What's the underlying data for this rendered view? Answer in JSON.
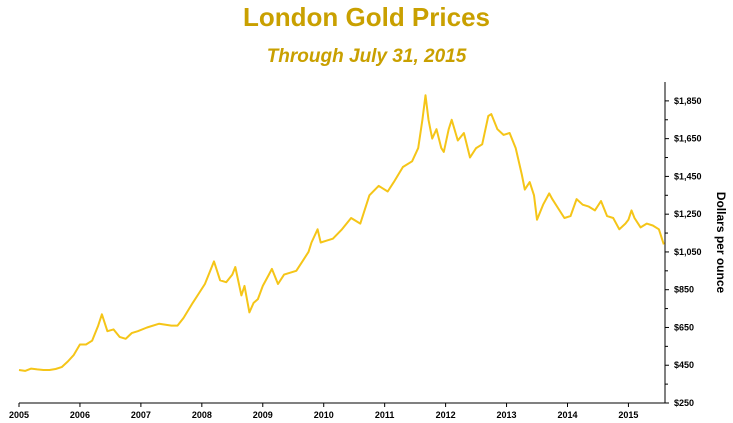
{
  "chart_data": {
    "type": "line",
    "title": "London Gold Prices",
    "subtitle": "Through July 31, 2015",
    "xlabel": "",
    "ylabel": "Dollars per ounce",
    "xlim": [
      2005.0,
      2015.6
    ],
    "ylim": [
      250,
      1950
    ],
    "x_ticks": [
      "2005",
      "2006",
      "2007",
      "2008",
      "2009",
      "2010",
      "2011",
      "2012",
      "2013",
      "2014",
      "2015"
    ],
    "y_ticks": [
      "$250",
      "$450",
      "$650",
      "$850",
      "$1,050",
      "$1,250",
      "$1,450",
      "$1,650",
      "$1,850"
    ],
    "y_axis_position": "right",
    "grid": false,
    "legend": "none",
    "colors": {
      "line": "#F5C518",
      "title": "#C9A000",
      "axis": "#000000"
    },
    "series": [
      {
        "x": [
          2005.0,
          2005.1,
          2005.2,
          2005.3,
          2005.4,
          2005.5,
          2005.6,
          2005.7,
          2005.8,
          2005.9,
          2006.0,
          2006.1,
          2006.2,
          2006.3,
          2006.36,
          2006.45,
          2006.55,
          2006.65,
          2006.75,
          2006.85,
          2006.95,
          2007.1,
          2007.3,
          2007.5,
          2007.6,
          2007.7,
          2007.85,
          2007.95,
          2008.05,
          2008.15,
          2008.2,
          2008.3,
          2008.4,
          2008.5,
          2008.55,
          2008.65,
          2008.7,
          2008.78,
          2008.85,
          2008.92,
          2009.0,
          2009.1,
          2009.15,
          2009.25,
          2009.35,
          2009.45,
          2009.55,
          2009.65,
          2009.75,
          2009.8,
          2009.9,
          2009.95,
          2010.05,
          2010.15,
          2010.3,
          2010.45,
          2010.6,
          2010.75,
          2010.9,
          2010.95,
          2011.05,
          2011.15,
          2011.3,
          2011.45,
          2011.55,
          2011.62,
          2011.67,
          2011.72,
          2011.78,
          2011.85,
          2011.93,
          2011.97,
          2012.05,
          2012.1,
          2012.2,
          2012.3,
          2012.4,
          2012.5,
          2012.6,
          2012.7,
          2012.75,
          2012.85,
          2012.95,
          2013.05,
          2013.15,
          2013.25,
          2013.3,
          2013.38,
          2013.45,
          2013.5,
          2013.6,
          2013.7,
          2013.75,
          2013.85,
          2013.95,
          2014.05,
          2014.15,
          2014.25,
          2014.35,
          2014.45,
          2014.55,
          2014.65,
          2014.75,
          2014.85,
          2014.95,
          2015.0,
          2015.05,
          2015.1,
          2015.2,
          2015.3,
          2015.4,
          2015.5,
          2015.58
        ],
        "values": [
          425,
          420,
          432,
          428,
          425,
          425,
          430,
          440,
          470,
          505,
          560,
          560,
          580,
          660,
          720,
          630,
          640,
          600,
          590,
          620,
          630,
          650,
          670,
          660,
          660,
          700,
          780,
          830,
          880,
          960,
          1000,
          900,
          890,
          930,
          970,
          820,
          870,
          730,
          780,
          800,
          870,
          930,
          960,
          880,
          930,
          940,
          950,
          1000,
          1050,
          1100,
          1170,
          1100,
          1110,
          1120,
          1170,
          1230,
          1200,
          1350,
          1400,
          1390,
          1370,
          1420,
          1500,
          1530,
          1600,
          1750,
          1880,
          1750,
          1650,
          1700,
          1600,
          1580,
          1700,
          1750,
          1640,
          1680,
          1550,
          1600,
          1620,
          1770,
          1780,
          1700,
          1670,
          1680,
          1600,
          1460,
          1380,
          1420,
          1350,
          1220,
          1300,
          1360,
          1330,
          1280,
          1230,
          1240,
          1330,
          1300,
          1290,
          1270,
          1320,
          1240,
          1230,
          1170,
          1200,
          1220,
          1270,
          1230,
          1180,
          1200,
          1190,
          1170,
          1090
        ]
      }
    ]
  }
}
